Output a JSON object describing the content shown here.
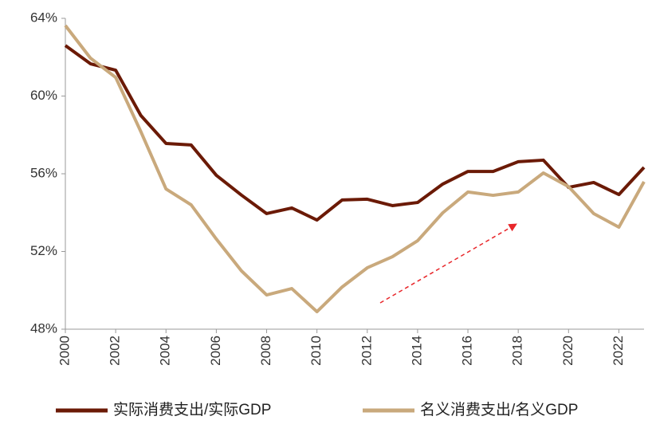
{
  "chart_data": {
    "type": "line",
    "x": [
      2000,
      2001,
      2002,
      2003,
      2004,
      2005,
      2006,
      2007,
      2008,
      2009,
      2010,
      2011,
      2012,
      2013,
      2014,
      2015,
      2016,
      2017,
      2018,
      2019,
      2020,
      2021,
      2022,
      2023
    ],
    "series": [
      {
        "name": "实际消费支出/实际GDP",
        "color": "#6b1a06",
        "values": [
          62.6,
          61.66,
          61.33,
          59.0,
          57.56,
          57.48,
          55.92,
          54.9,
          53.95,
          54.24,
          53.62,
          54.65,
          54.69,
          54.36,
          54.52,
          55.47,
          56.12,
          56.12,
          56.62,
          56.7,
          55.3,
          55.55,
          54.93,
          56.33
        ]
      },
      {
        "name": "名义消费支出/名义GDP",
        "color": "#c9a97c",
        "values": [
          63.63,
          61.95,
          60.96,
          58.17,
          55.22,
          54.4,
          52.64,
          51.0,
          49.76,
          50.09,
          48.9,
          50.17,
          51.16,
          51.73,
          52.55,
          53.99,
          55.06,
          54.89,
          55.06,
          56.04,
          55.34,
          53.95,
          53.25,
          55.59
        ]
      }
    ],
    "xlim": [
      2000,
      2023
    ],
    "xticks": [
      2000,
      2002,
      2004,
      2006,
      2008,
      2010,
      2012,
      2014,
      2016,
      2018,
      2020,
      2022
    ],
    "ylim": [
      48,
      64
    ],
    "yticks": [
      {
        "value": 48,
        "label": "48%"
      },
      {
        "value": 52,
        "label": "52%"
      },
      {
        "value": 56,
        "label": "56%"
      },
      {
        "value": 60,
        "label": "60%"
      },
      {
        "value": 64,
        "label": "64%"
      }
    ],
    "legend": "bottom"
  }
}
